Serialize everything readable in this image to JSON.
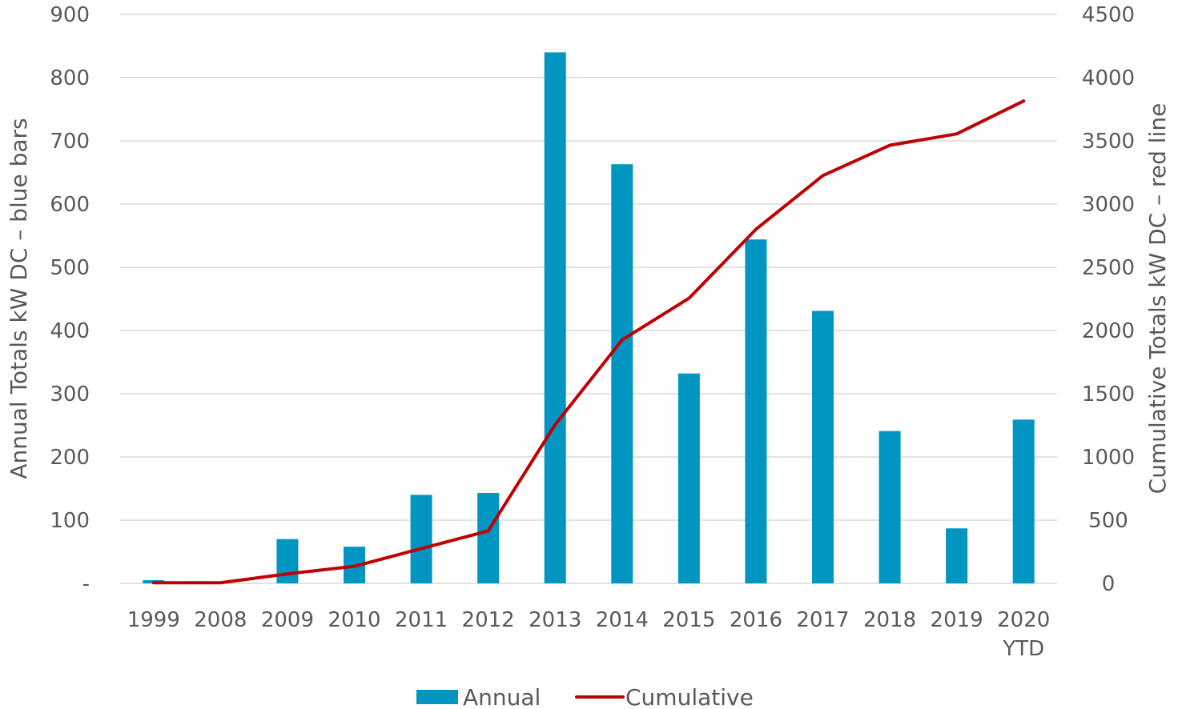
{
  "chart_data": {
    "type": "bar+line",
    "categories": [
      {
        "line1": "1999",
        "line2": ""
      },
      {
        "line1": "2008",
        "line2": ""
      },
      {
        "line1": "2009",
        "line2": ""
      },
      {
        "line1": "2010",
        "line2": ""
      },
      {
        "line1": "2011",
        "line2": ""
      },
      {
        "line1": "2012",
        "line2": ""
      },
      {
        "line1": "2013",
        "line2": ""
      },
      {
        "line1": "2014",
        "line2": ""
      },
      {
        "line1": "2015",
        "line2": ""
      },
      {
        "line1": "2016",
        "line2": ""
      },
      {
        "line1": "2017",
        "line2": ""
      },
      {
        "line1": "2018",
        "line2": ""
      },
      {
        "line1": "2019",
        "line2": ""
      },
      {
        "line1": "2020",
        "line2": "YTD"
      }
    ],
    "series": [
      {
        "name": "Annual",
        "type": "bar",
        "axis": "left",
        "color": "#0096c1",
        "values": [
          5,
          0,
          70,
          58,
          140,
          143,
          840,
          663,
          332,
          544,
          431,
          241,
          87,
          259
        ]
      },
      {
        "name": "Cumulative",
        "type": "line",
        "axis": "right",
        "color": "#c00000",
        "values": [
          5,
          5,
          75,
          135,
          275,
          415,
          1255,
          1925,
          2255,
          2800,
          3225,
          3465,
          3555,
          3815
        ]
      }
    ],
    "y_left": {
      "label": "Annual Totals kW DC – blue bars",
      "range": [
        0,
        900
      ],
      "ticks": [
        0,
        100,
        200,
        300,
        400,
        500,
        600,
        700,
        800,
        900
      ],
      "tick_labels": [
        "-",
        "100",
        "200",
        "300",
        "400",
        "500",
        "600",
        "700",
        "800",
        "900"
      ]
    },
    "y_right": {
      "label": "Cumulative Totals kW DC – red line",
      "range": [
        0,
        4500
      ],
      "ticks": [
        0,
        500,
        1000,
        1500,
        2000,
        2500,
        3000,
        3500,
        4000,
        4500
      ],
      "tick_labels": [
        "0",
        "500",
        "1000",
        "1500",
        "2000",
        "2500",
        "3000",
        "3500",
        "4000",
        "4500"
      ]
    },
    "grid": true,
    "legend": "bottom-center"
  }
}
